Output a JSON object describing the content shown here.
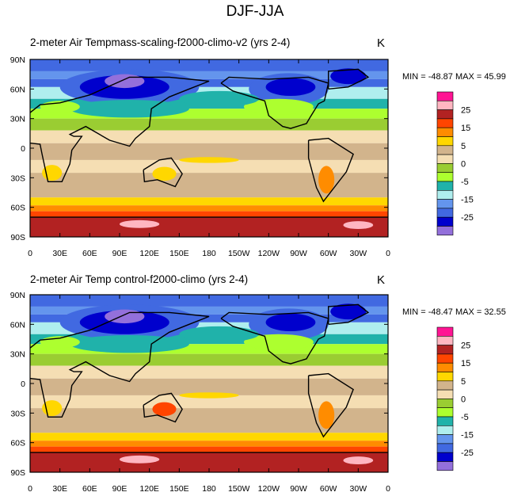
{
  "figure_title": "DJF-JJA",
  "chart_data": [
    {
      "type": "heatmap",
      "title": "2-meter Air Tempmass-scaling-f2000-climo-v2 (yrs 2-4)",
      "units": "K",
      "stats": "MIN = -48.87 MAX =  45.99",
      "x_ticks": [
        "0",
        "30E",
        "60E",
        "90E",
        "120E",
        "150E",
        "180",
        "150W",
        "120W",
        "90W",
        "60W",
        "30W",
        "0"
      ],
      "y_ticks": [
        "90N",
        "60N",
        "30N",
        "0",
        "30S",
        "60S",
        "90S"
      ],
      "xlim": [
        0,
        360
      ],
      "ylim": [
        -90,
        90
      ]
    },
    {
      "type": "heatmap",
      "title": "2-meter Air Temp        control-f2000-climo (yrs 2-4)",
      "units": "K",
      "stats": "MIN = -48.47 MAX =  32.55",
      "x_ticks": [
        "0",
        "30E",
        "60E",
        "90E",
        "120E",
        "150E",
        "180",
        "150W",
        "120W",
        "90W",
        "60W",
        "30W",
        "0"
      ],
      "y_ticks": [
        "90N",
        "60N",
        "30N",
        "0",
        "30S",
        "60S",
        "90S"
      ],
      "xlim": [
        0,
        360
      ],
      "ylim": [
        -90,
        90
      ]
    }
  ],
  "colorbar": {
    "colors": [
      "#ff1493",
      "#ffb6c1",
      "#b22222",
      "#ff4500",
      "#ff8c00",
      "#ffd700",
      "#d2b48c",
      "#f5deb3",
      "#9acd32",
      "#adff2f",
      "#20b2aa",
      "#afeeee",
      "#6495ed",
      "#4169e1",
      "#0000cd",
      "#9370db"
    ],
    "labels": [
      "25",
      "15",
      "5",
      "0",
      "-5",
      "-15",
      "-25"
    ]
  }
}
